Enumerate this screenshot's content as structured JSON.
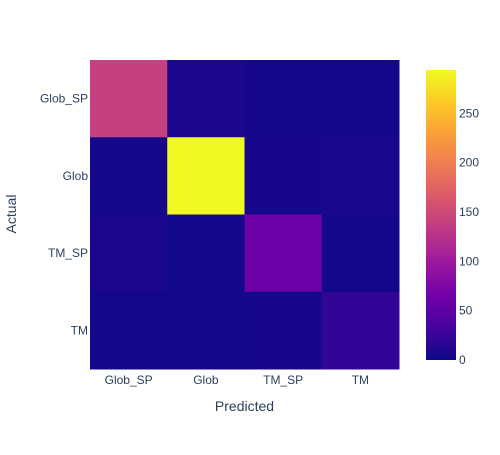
{
  "chart_data": {
    "type": "heatmap",
    "title": "",
    "xlabel": "Predicted",
    "ylabel": "Actual",
    "x_categories": [
      "Glob_SP",
      "Glob",
      "TM_SP",
      "TM"
    ],
    "y_categories": [
      "Glob_SP",
      "Glob",
      "TM_SP",
      "TM"
    ],
    "z": [
      [
        140,
        8,
        4,
        3
      ],
      [
        4,
        294,
        5,
        7
      ],
      [
        8,
        3,
        60,
        3
      ],
      [
        3,
        4,
        6,
        22
      ]
    ],
    "colorbar": {
      "min": 0,
      "max": 294,
      "ticks": [
        0,
        50,
        100,
        150,
        200,
        250
      ]
    },
    "colorscale": [
      "#0d0887",
      "#46039f",
      "#7201a8",
      "#9c179e",
      "#bd3786",
      "#d8576b",
      "#ed7953",
      "#fb9f3a",
      "#fdca26",
      "#f0f921"
    ],
    "grid": false
  }
}
